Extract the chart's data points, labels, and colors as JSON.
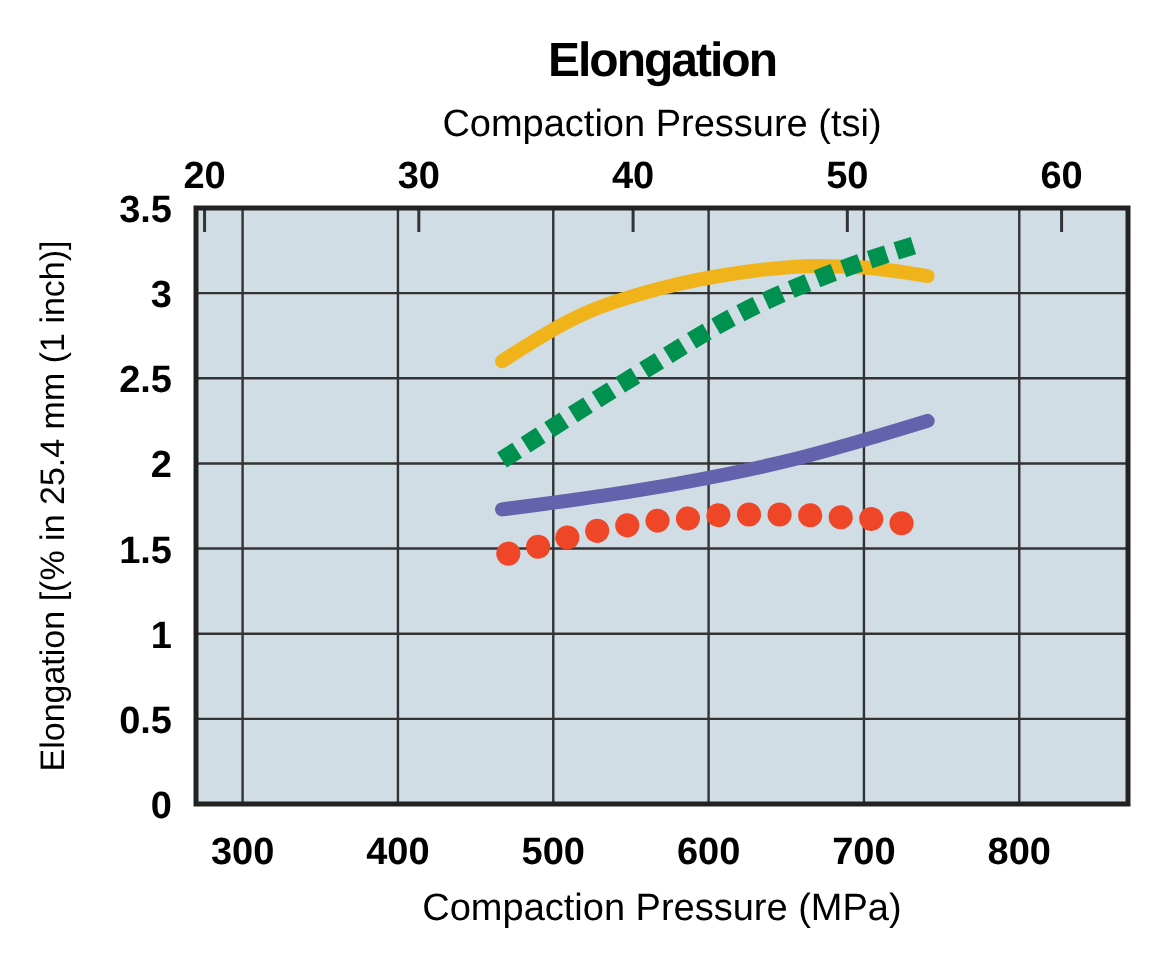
{
  "chart_data": {
    "type": "line",
    "title": "Elongation",
    "xlabel": "Compaction Pressure (MPa)",
    "x2label": "Compaction Pressure (tsi)",
    "ylabel": "Elongation [(% in 25.4 mm (1 inch)]",
    "xlim": [
      270,
      870
    ],
    "xticks": [
      300,
      400,
      500,
      600,
      700,
      800
    ],
    "x2lim": [
      19.6,
      63.1
    ],
    "x2ticks": [
      20,
      30,
      40,
      50,
      60
    ],
    "ylim": [
      0,
      3.5
    ],
    "yticks": [
      0,
      0.5,
      1,
      1.5,
      2,
      2.5,
      3,
      3.5
    ],
    "grid": true,
    "series": [
      {
        "color": "#f0b31a",
        "line_style": "solid",
        "x": [
          467,
          520,
          570,
          620,
          670,
          700,
          741
        ],
        "values": [
          2.6,
          2.88,
          3.03,
          3.12,
          3.16,
          3.15,
          3.1
        ]
      },
      {
        "color": "#00914f",
        "line_style": "dashed",
        "x": [
          467,
          550,
          620,
          680,
          732
        ],
        "values": [
          2.02,
          2.5,
          2.88,
          3.12,
          3.28
        ]
      },
      {
        "color": "#6462ad",
        "line_style": "solid",
        "x": [
          467,
          560,
          653,
          741
        ],
        "values": [
          1.73,
          1.85,
          2.02,
          2.25
        ]
      },
      {
        "color": "#f04628",
        "line_style": "dotted",
        "x": [
          471,
          490,
          507,
          526,
          544,
          562,
          580,
          599,
          617,
          636,
          655,
          673,
          692,
          710,
          729
        ],
        "values": [
          1.47,
          1.51,
          1.56,
          1.6,
          1.63,
          1.66,
          1.67,
          1.69,
          1.7,
          1.7,
          1.7,
          1.69,
          1.68,
          1.67,
          1.64
        ]
      }
    ]
  }
}
